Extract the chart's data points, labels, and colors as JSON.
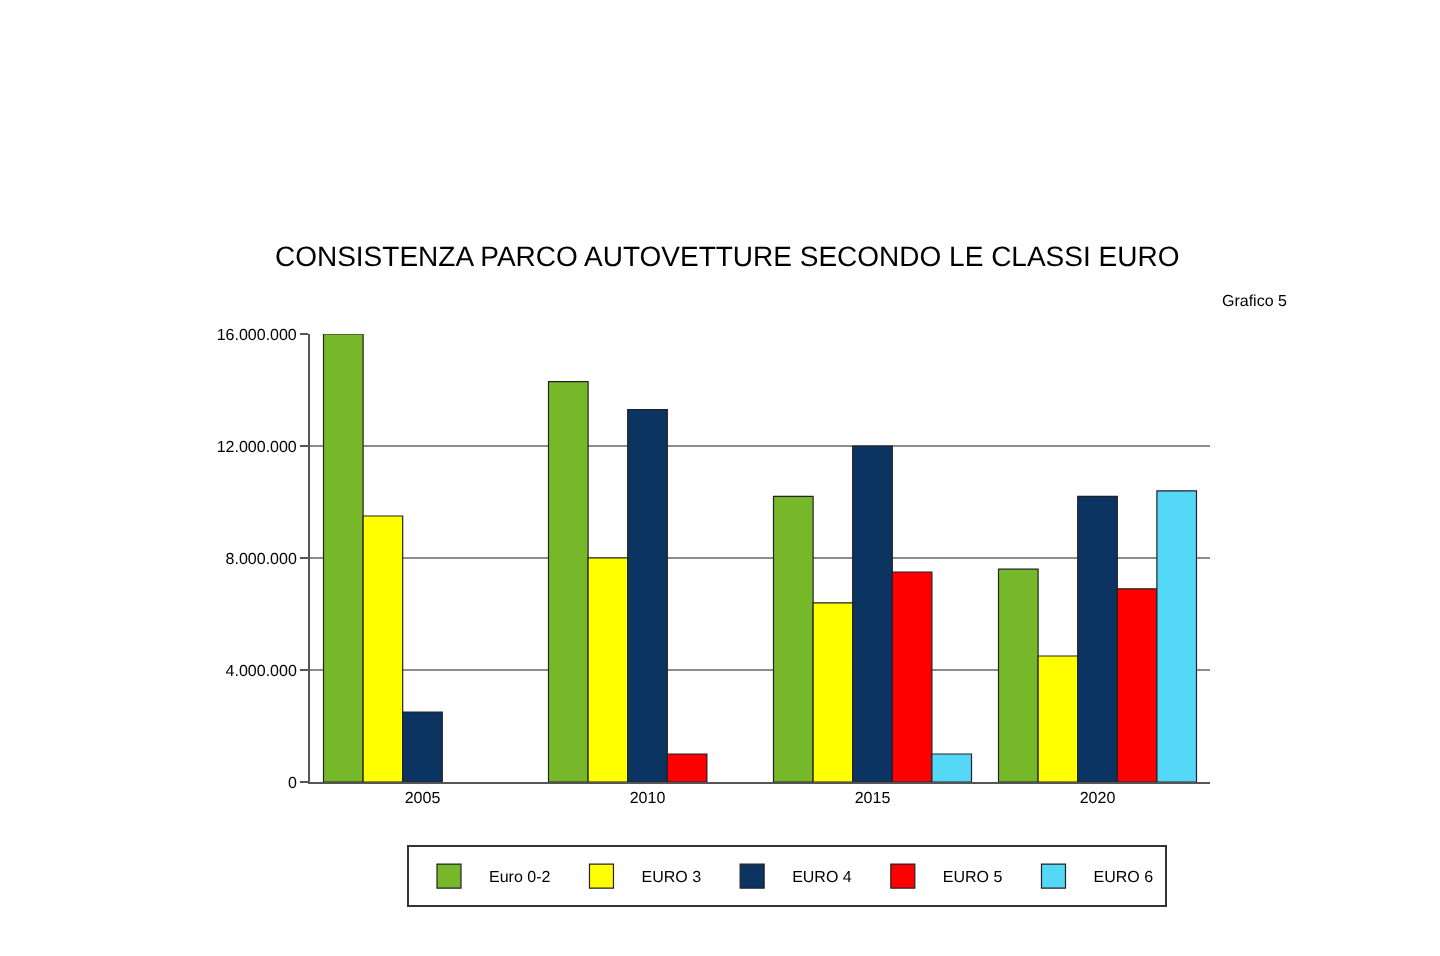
{
  "chart_data": {
    "type": "bar",
    "title": "CONSISTENZA PARCO AUTOVETTURE SECONDO LE CLASSI EURO",
    "annotations": [
      "Grafico 5"
    ],
    "categories": [
      "2005",
      "2010",
      "2015",
      "2020"
    ],
    "series": [
      {
        "name": "Euro 0-2",
        "color": "#77b82a",
        "values": [
          16000000,
          14300000,
          10200000,
          7600000
        ]
      },
      {
        "name": "EURO 3",
        "color": "#ffff00",
        "values": [
          9500000,
          8000000,
          6400000,
          4500000
        ]
      },
      {
        "name": "EURO 4",
        "color": "#0b3463",
        "values": [
          2500000,
          13300000,
          12000000,
          10200000
        ]
      },
      {
        "name": "EURO 5",
        "color": "#ff0000",
        "values": [
          null,
          1000000,
          7500000,
          6900000
        ]
      },
      {
        "name": "EURO 6",
        "color": "#55d8f8",
        "values": [
          null,
          null,
          1000000,
          10400000
        ]
      }
    ],
    "ylim": [
      0,
      16000000
    ],
    "yticks": [
      {
        "value": 0,
        "label": "0"
      },
      {
        "value": 4000000,
        "label": "4.000.000"
      },
      {
        "value": 8000000,
        "label": "8.000.000"
      },
      {
        "value": 12000000,
        "label": "12.000.000"
      },
      {
        "value": 16000000,
        "label": "16.000.000"
      }
    ],
    "grid": "y",
    "legend": "bottom"
  }
}
